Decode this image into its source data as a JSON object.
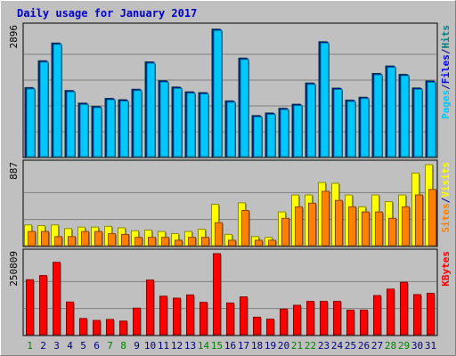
{
  "chart_data": {
    "type": "bar",
    "title": "Daily usage for January 2017",
    "x": [
      "1",
      "2",
      "3",
      "4",
      "5",
      "6",
      "7",
      "8",
      "9",
      "10",
      "11",
      "12",
      "13",
      "14",
      "15",
      "16",
      "17",
      "18",
      "19",
      "20",
      "21",
      "22",
      "23",
      "24",
      "25",
      "26",
      "27",
      "28",
      "29",
      "30",
      "31"
    ],
    "weekend_days": [
      1,
      7,
      8,
      14,
      15,
      21,
      22,
      28,
      29
    ],
    "panels": [
      {
        "name": "hits-files-pages",
        "ylabel_max": "2896",
        "ymax": 2896,
        "legend": [
          {
            "text": "Pages",
            "color": "#00c8ff"
          },
          {
            "text": "/",
            "color": "#000080"
          },
          {
            "text": "Files",
            "color": "#0000ff"
          },
          {
            "text": "/",
            "color": "#000080"
          },
          {
            "text": "Hits",
            "color": "#008080"
          }
        ],
        "series": [
          {
            "name": "Hits",
            "color": "#008080",
            "values": [
              1550,
              2152,
              2550,
              1485,
              1202,
              1130,
              1308,
              1278,
              1513,
              2128,
              1705,
              1563,
              1455,
              1437,
              2862,
              1252,
              2212,
              923,
              980,
              1086,
              1177,
              1653,
              2581,
              1539,
              1270,
              1334,
              1868,
              2035,
              1848,
              1543,
              1701
            ]
          },
          {
            "name": "Files",
            "color": "#0000ff",
            "values": [
              1535,
              2137,
              2535,
              1470,
              1187,
              1115,
              1293,
              1263,
              1498,
              2113,
              1690,
              1548,
              1440,
              1422,
              2847,
              1237,
              2197,
              908,
              965,
              1071,
              1162,
              1638,
              2566,
              1524,
              1255,
              1319,
              1853,
              2020,
              1833,
              1528,
              1686
            ]
          },
          {
            "name": "Pages",
            "color": "#00c8ff",
            "values": [
              1520,
              2122,
              2520,
              1455,
              1172,
              1100,
              1278,
              1248,
              1483,
              2098,
              1675,
              1533,
              1425,
              1407,
              2832,
              1222,
              2182,
              893,
              950,
              1056,
              1147,
              1623,
              2551,
              1509,
              1240,
              1304,
              1838,
              2005,
              1818,
              1513,
              1671
            ]
          }
        ]
      },
      {
        "name": "visits-sites",
        "ylabel_max": "887",
        "ymax": 887,
        "legend": [
          {
            "text": "Sites",
            "color": "#ff8000"
          },
          {
            "text": "/",
            "color": "#000080"
          },
          {
            "text": "Visits",
            "color": "#ffff00"
          }
        ],
        "series": [
          {
            "name": "Visits",
            "color": "#ffff00",
            "values": [
              227,
              219,
              227,
              187,
              203,
              203,
              211,
              195,
              163,
              171,
              155,
              131,
              155,
              179,
              453,
              123,
              469,
              99,
              91,
              369,
              555,
              555,
              691,
              683,
              555,
              425,
              555,
              483,
              555,
              795,
              887
            ]
          },
          {
            "name": "Sites",
            "color": "#ff8000",
            "values": [
              155,
              155,
              99,
              99,
              155,
              155,
              131,
              123,
              91,
              91,
              91,
              59,
              91,
              91,
              251,
              59,
              385,
              59,
              59,
              299,
              425,
              465,
              595,
              495,
              425,
              369,
              369,
              299,
              425,
              555,
              615
            ]
          }
        ]
      },
      {
        "name": "kbytes",
        "ylabel_max": "250809",
        "ymax": 250809,
        "legend": [
          {
            "text": "KBytes",
            "color": "#ff0000"
          }
        ],
        "series": [
          {
            "name": "KBytes",
            "color": "#ff0000",
            "values": [
              170000,
              183000,
              224000,
              101000,
              50000,
              44000,
              47000,
              42000,
              82000,
              169000,
              119000,
              113000,
              123000,
              100000,
              250809,
              98000,
              117000,
              54000,
              48000,
              79000,
              91000,
              103000,
              103000,
              103000,
              76000,
              76000,
              121000,
              141000,
              162000,
              124000,
              128000
            ]
          }
        ]
      }
    ]
  }
}
